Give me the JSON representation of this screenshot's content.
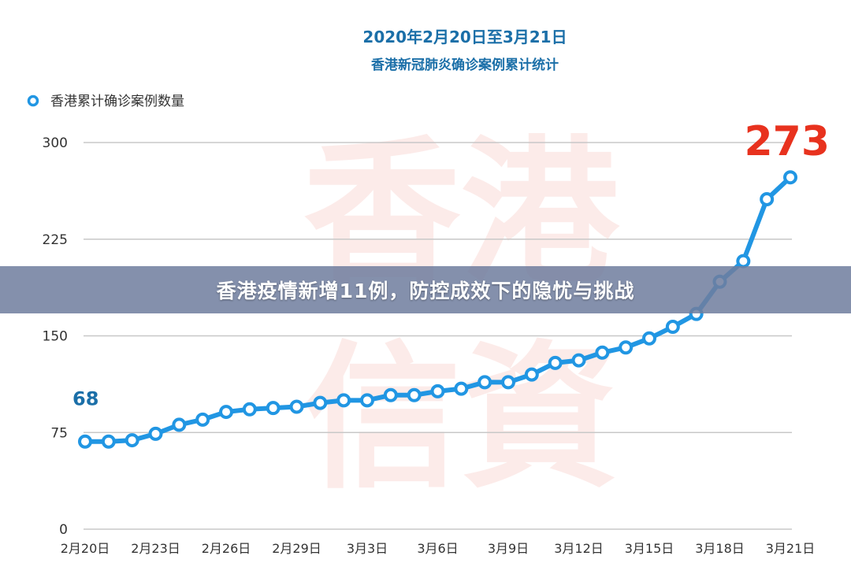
{
  "banner": {
    "headline": "香港疫情新增11例，防控成效下的隐忧与挑战"
  },
  "watermark": {
    "text_top": "香港",
    "text_bottom": "信資"
  },
  "colors": {
    "line": "#2196e3",
    "point_fill": "#ffffff",
    "start_label": "#1b6fa8",
    "end_label": "#e8321e",
    "title": "#1b6fa8"
  },
  "chart_data": {
    "type": "line",
    "title": "2020年2月20日至3月21日",
    "subtitle": "香港新冠肺炎确诊案例累计统计",
    "legend": {
      "position": "top-left",
      "entries": [
        "香港累计确诊案例数量"
      ]
    },
    "xlabel": "",
    "ylabel": "",
    "ylim": [
      0,
      300
    ],
    "yticks": [
      0,
      75,
      150,
      225,
      300
    ],
    "grid": true,
    "x": [
      "2月20日",
      "2月21日",
      "2月22日",
      "2月23日",
      "2月24日",
      "2月25日",
      "2月26日",
      "2月27日",
      "2月28日",
      "2月29日",
      "3月1日",
      "3月2日",
      "3月3日",
      "3月4日",
      "3月5日",
      "3月6日",
      "3月7日",
      "3月8日",
      "3月9日",
      "3月10日",
      "3月11日",
      "3月12日",
      "3月13日",
      "3月14日",
      "3月15日",
      "3月16日",
      "3月17日",
      "3月18日",
      "3月19日",
      "3月20日",
      "3月21日"
    ],
    "xticks": [
      "2月20日",
      "2月23日",
      "2月26日",
      "2月29日",
      "3月3日",
      "3月6日",
      "3月9日",
      "3月12日",
      "3月15日",
      "3月18日",
      "3月21日"
    ],
    "series": [
      {
        "name": "香港累计确诊案例数量",
        "values": [
          68,
          68,
          69,
          74,
          81,
          85,
          91,
          93,
          94,
          95,
          98,
          100,
          100,
          104,
          104,
          107,
          109,
          114,
          114,
          120,
          129,
          131,
          137,
          141,
          148,
          157,
          167,
          192,
          208,
          256,
          273
        ]
      }
    ],
    "annotations": [
      {
        "label": "68",
        "x": "2月20日",
        "y": 68
      },
      {
        "label": "273",
        "x": "3月21日",
        "y": 273
      }
    ]
  }
}
